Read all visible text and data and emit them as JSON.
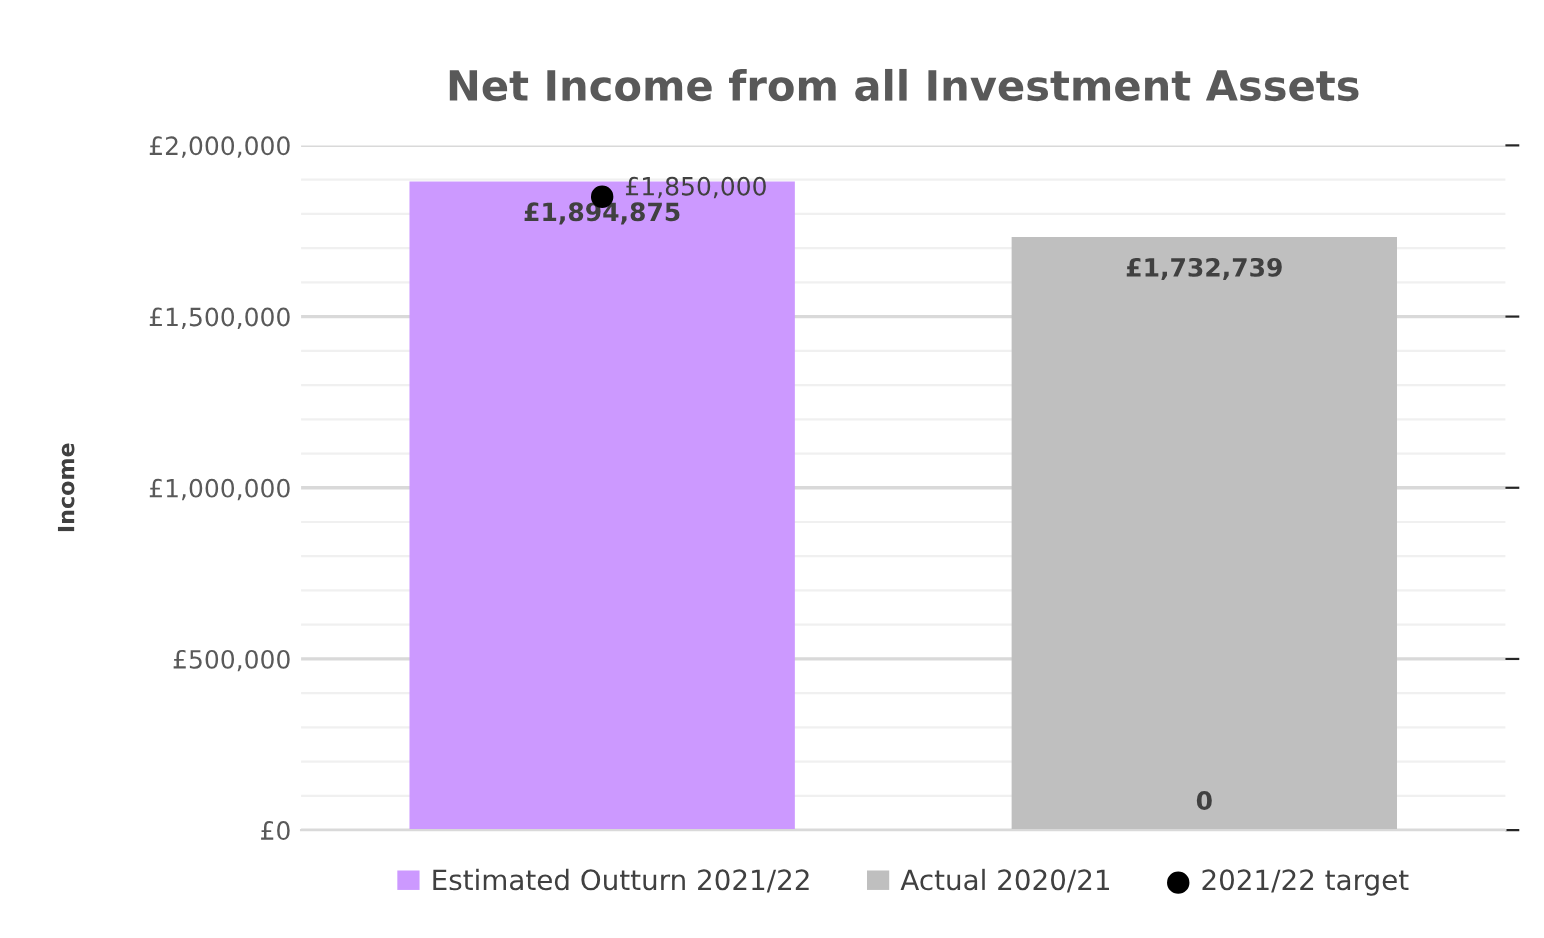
{
  "chart_data": {
    "type": "bar",
    "title": "Net Income from all Investment Assets",
    "ylabel": "Income",
    "categories": [
      null,
      null
    ],
    "series": [
      {
        "name": "Estimated Outturn 2021/22",
        "color": "#cc99ff",
        "values": [
          1894875,
          null
        ],
        "value_labels": [
          "£1,894,875",
          null
        ]
      },
      {
        "name": "Actual 2020/21",
        "color": "#bfbfbf",
        "values": [
          null,
          1732739
        ],
        "value_labels": [
          null,
          "£1,732,739"
        ]
      },
      {
        "name": "2021/22 target",
        "type": "scatter",
        "color": "#000000",
        "values": [
          1850000,
          null
        ],
        "value_labels": [
          "£1,850,000",
          null
        ]
      }
    ],
    "annotations": [
      "0"
    ],
    "ylim": [
      0,
      2000000
    ],
    "yticks": [
      {
        "value": 0,
        "label": "£0"
      },
      {
        "value": 100000,
        "label": null
      },
      {
        "value": 200000,
        "label": null
      },
      {
        "value": 300000,
        "label": null
      },
      {
        "value": 400000,
        "label": null
      },
      {
        "value": 500000,
        "label": "£500,000"
      },
      {
        "value": 600000,
        "label": null
      },
      {
        "value": 700000,
        "label": null
      },
      {
        "value": 800000,
        "label": null
      },
      {
        "value": 900000,
        "label": null
      },
      {
        "value": 1000000,
        "label": "£1,000,000"
      },
      {
        "value": 1100000,
        "label": null
      },
      {
        "value": 1200000,
        "label": null
      },
      {
        "value": 1300000,
        "label": null
      },
      {
        "value": 1400000,
        "label": null
      },
      {
        "value": 1500000,
        "label": "£1,500,000"
      },
      {
        "value": 1600000,
        "label": null
      },
      {
        "value": 1700000,
        "label": null
      },
      {
        "value": 1800000,
        "label": null
      },
      {
        "value": 1900000,
        "label": null
      },
      {
        "value": 2000000,
        "label": "£2,000,000"
      }
    ],
    "tick_labels": "y",
    "grid": "y",
    "legend": "bottom",
    "marker": "circle"
  }
}
